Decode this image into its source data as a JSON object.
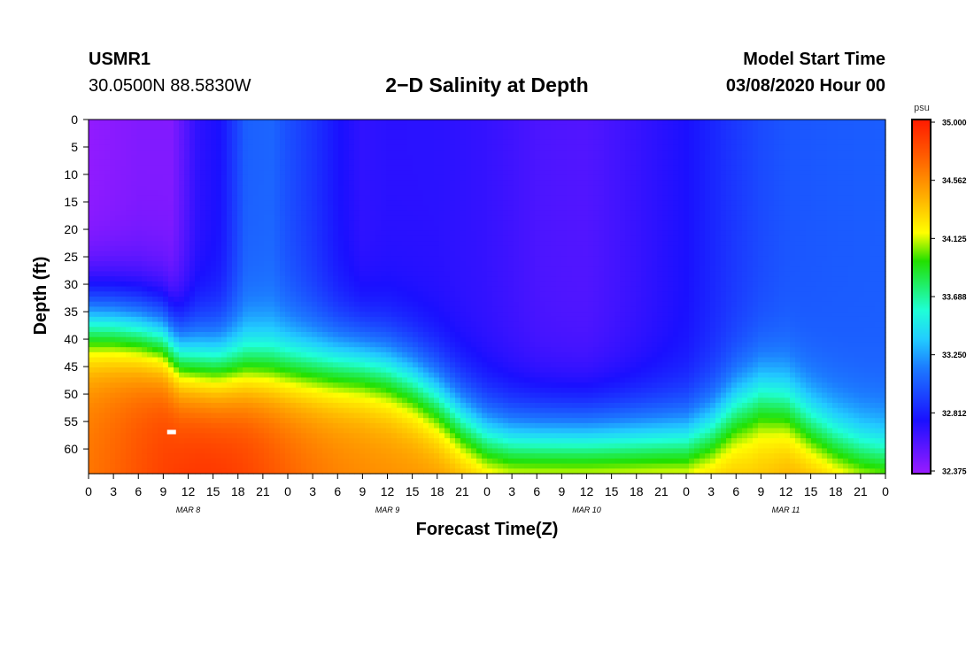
{
  "header": {
    "station": "USMR1",
    "coords": "30.0500N 88.5830W",
    "title": "2−D Salinity at Depth",
    "start_label": "Model Start Time",
    "start_value": "03/08/2020 Hour 00"
  },
  "chart_data": {
    "type": "heatmap",
    "title": "2−D Salinity at Depth",
    "xlabel": "Forecast Time(Z)",
    "ylabel": "Depth (ft)",
    "x_ticks": [
      "0",
      "3",
      "6",
      "9",
      "12",
      "15",
      "18",
      "21",
      "0",
      "3",
      "6",
      "9",
      "12",
      "15",
      "18",
      "21",
      "0",
      "3",
      "6",
      "9",
      "12",
      "15",
      "18",
      "21",
      "0",
      "3",
      "6",
      "9",
      "12",
      "15",
      "18",
      "21",
      "0"
    ],
    "x_hours": [
      0,
      3,
      6,
      9,
      12,
      15,
      18,
      21,
      24,
      27,
      30,
      33,
      36,
      39,
      42,
      45,
      48,
      51,
      54,
      57,
      60,
      63,
      66,
      69,
      72,
      75,
      78,
      81,
      84,
      87,
      90,
      93,
      96
    ],
    "date_labels": [
      {
        "text": "MAR 8",
        "hour": 12
      },
      {
        "text": "MAR 9",
        "hour": 36
      },
      {
        "text": "MAR 10",
        "hour": 60
      },
      {
        "text": "MAR 11",
        "hour": 84
      }
    ],
    "xlim": [
      0,
      96
    ],
    "y_ticks": [
      0,
      5,
      10,
      15,
      20,
      25,
      30,
      35,
      40,
      45,
      50,
      55,
      60
    ],
    "ylim": [
      0,
      64.5
    ],
    "colorbar": {
      "unit": "psu",
      "ticks": [
        "35.000",
        "34.562",
        "34.125",
        "33.688",
        "33.250",
        "32.812",
        "32.375"
      ],
      "range": [
        32.375,
        35.0
      ]
    },
    "halocline_depth_ft": {
      "hours": [
        0,
        3,
        6,
        9,
        11,
        13,
        15,
        18,
        21,
        24,
        27,
        30,
        33,
        36,
        39,
        42,
        45,
        48,
        51,
        54,
        57,
        60,
        63,
        66,
        69,
        72,
        75,
        78,
        81,
        84,
        87,
        90,
        93,
        96
      ],
      "depths": [
        37,
        37.5,
        38.5,
        40,
        43.5,
        44.5,
        45,
        45,
        45,
        45,
        45,
        45,
        45,
        46,
        48,
        51,
        55,
        58,
        59,
        59,
        59,
        59,
        59,
        59,
        59,
        59,
        57,
        53,
        51,
        52,
        56,
        59,
        61,
        62
      ]
    },
    "surface_salinity_psu": {
      "hours": [
        0,
        6,
        10,
        13,
        16,
        17.5,
        19,
        22,
        24,
        27,
        30,
        33,
        36,
        42,
        48,
        54,
        60,
        66,
        72,
        75,
        78,
        81,
        84,
        90,
        96
      ],
      "values": [
        32.4,
        32.45,
        32.45,
        32.7,
        32.78,
        32.92,
        33.06,
        33.08,
        33.0,
        32.9,
        32.78,
        32.7,
        32.72,
        32.72,
        32.7,
        32.66,
        32.66,
        32.72,
        32.78,
        32.85,
        32.92,
        32.98,
        33.02,
        33.04,
        33.05
      ]
    }
  }
}
